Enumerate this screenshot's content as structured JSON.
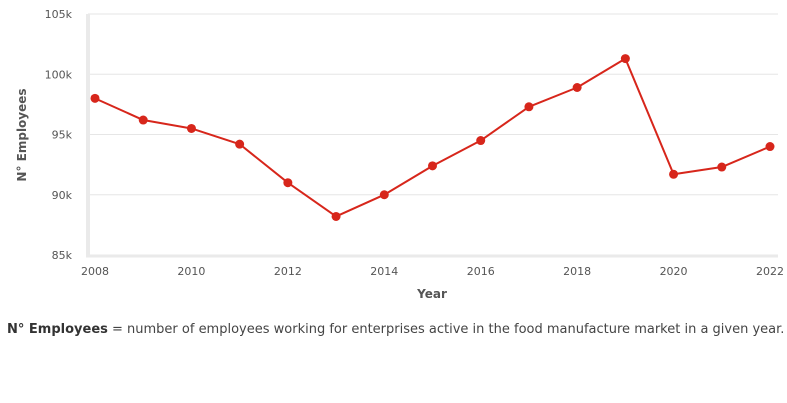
{
  "chart_data": {
    "type": "line",
    "xlabel": "Year",
    "ylabel": "N° Employees",
    "x": [
      2008,
      2009,
      2010,
      2011,
      2012,
      2013,
      2014,
      2015,
      2016,
      2017,
      2018,
      2019,
      2020,
      2021,
      2022
    ],
    "series": [
      {
        "values": [
          98000,
          96200,
          95500,
          94200,
          91000,
          88200,
          90000,
          92400,
          94500,
          97300,
          98900,
          101300,
          91700,
          92300,
          94000
        ]
      }
    ],
    "xlim": [
      2008,
      2022
    ],
    "ylim": [
      85000,
      105000
    ],
    "x_ticks": [
      2008,
      2010,
      2012,
      2014,
      2016,
      2018,
      2020,
      2022
    ],
    "y_ticks": [
      {
        "value": 85000,
        "label": "85k"
      },
      {
        "value": 90000,
        "label": "90k"
      },
      {
        "value": 95000,
        "label": "95k"
      },
      {
        "value": 100000,
        "label": "100k"
      },
      {
        "value": 105000,
        "label": "105k"
      }
    ],
    "grid": "horizontal",
    "line_color": "#d7261b",
    "grid_color": "#e6e6e6",
    "axis_color": "#eaeaea"
  },
  "caption": {
    "term": "N° Employees",
    "text": " = number of employees working for enterprises active in the food manufacture market in a given year."
  }
}
